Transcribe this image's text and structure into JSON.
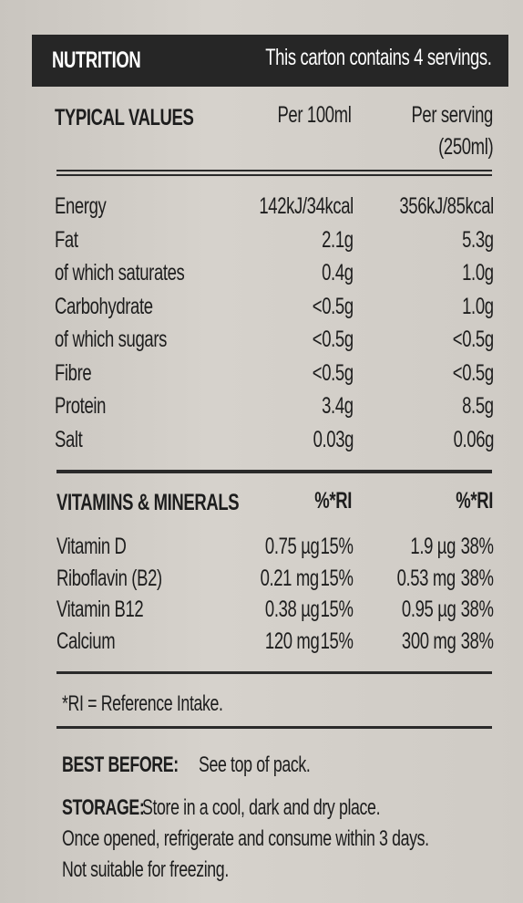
{
  "header": {
    "title": "NUTRITION",
    "note": "This carton contains 4 servings."
  },
  "columns": {
    "label": "TYPICAL VALUES",
    "per_100": "Per 100ml",
    "per_serving": "Per serving",
    "serving_size": "(250ml)"
  },
  "nutrients": [
    [
      "Energy",
      "142kJ/34kcal",
      "356kJ/85kcal"
    ],
    [
      "Fat",
      "2.1g",
      "5.3g"
    ],
    [
      "of which saturates",
      "0.4g",
      "1.0g"
    ],
    [
      "Carbohydrate",
      "<0.5g",
      "1.0g"
    ],
    [
      "of which sugars",
      "<0.5g",
      "<0.5g"
    ],
    [
      "Fibre",
      "<0.5g",
      "<0.5g"
    ],
    [
      "Protein",
      "3.4g",
      "8.5g"
    ],
    [
      "Salt",
      "0.03g",
      "0.06g"
    ]
  ],
  "vitamins_header": {
    "label": "VITAMINS & MINERALS",
    "per_100": "%*RI",
    "per_serving": "%*RI"
  },
  "vitamins": [
    [
      "Vitamin D",
      "0.75 µg",
      "15%",
      "1.9 µg",
      "38%"
    ],
    [
      "Riboflavin (B2)",
      "0.21 mg",
      "15%",
      "0.53 mg",
      "38%"
    ],
    [
      "Vitamin B12",
      "0.38 µg",
      "15%",
      "0.95 µg",
      "38%"
    ],
    [
      "Calcium",
      "120 mg",
      "15%",
      "300 mg",
      "38%"
    ]
  ],
  "footnote": "*RI = Reference Intake.",
  "best_before": {
    "label": "BEST BEFORE:",
    "text": "See top of pack."
  },
  "storage": {
    "label": "STORAGE:",
    "lines": [
      "Store in a cool, dark and dry place.",
      "Once opened, refrigerate and consume within 3 days.",
      "Not suitable for freezing."
    ]
  }
}
